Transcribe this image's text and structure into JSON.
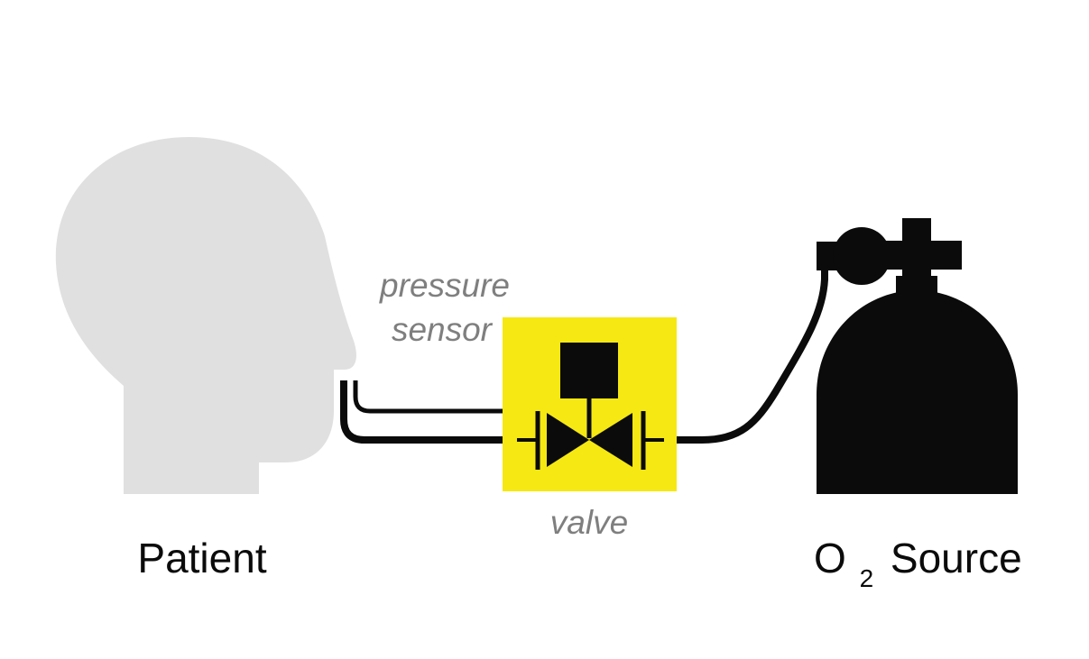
{
  "labels": {
    "pressure_sensor_line1": "pressure",
    "pressure_sensor_line2": "sensor",
    "valve": "valve",
    "patient": "Patient",
    "o2_prefix": "O",
    "o2_subscript": "2",
    "o2_suffix": "Source"
  },
  "colors": {
    "head": "#e0e0e0",
    "valve_box": "#f6e812",
    "ink": "#0b0b0b",
    "label_gray": "#7f7f7f"
  },
  "icons": [
    "head-silhouette-icon",
    "valve-symbol-icon",
    "oxygen-tank-icon"
  ]
}
